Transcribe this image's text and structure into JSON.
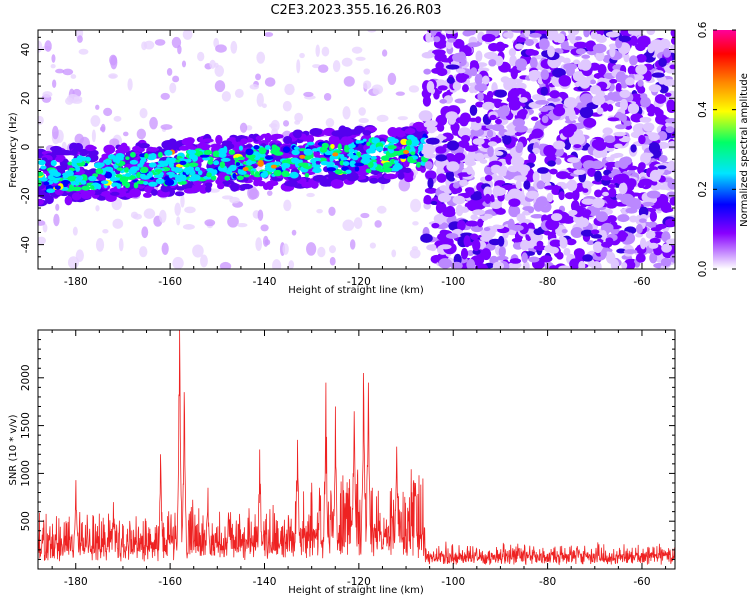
{
  "title": "C2E3.2023.355.16.26.R03",
  "chart_data": [
    {
      "type": "heatmap",
      "xlabel": "Height of straight line (km)",
      "ylabel": "Frequency (Hz)",
      "xlim": [
        -188,
        -53
      ],
      "ylim": [
        -50,
        48
      ],
      "xticks": [
        -180,
        -160,
        -140,
        -120,
        -100,
        -80,
        -60
      ],
      "yticks": [
        -40,
        -20,
        0,
        20,
        40
      ],
      "colorbar": {
        "label": "Normalized spectral amplitude",
        "range": [
          0.0,
          0.6
        ],
        "ticks": [
          "0.0",
          "0.2",
          "0.4",
          "0.6"
        ],
        "colors": [
          "#ffffff",
          "#cc99ff",
          "#8800ff",
          "#0000ff",
          "#00e5ff",
          "#00ff66",
          "#ffff00",
          "#ff8800",
          "#ff0000",
          "#ff0099"
        ]
      },
      "features": [
        {
          "x_range": [
            -188,
            -106
          ],
          "frequency_center_start": -12,
          "frequency_center_end": -2,
          "amplitude": "0.1-0.5"
        },
        {
          "x_range": [
            -106,
            -53
          ],
          "frequency_range": [
            -50,
            48
          ],
          "amplitude": "0.05-0.15"
        }
      ]
    },
    {
      "type": "line",
      "xlabel": "Height of straight line (km)",
      "ylabel": "SNR (10 * v/v)",
      "xlim": [
        -188,
        -53
      ],
      "ylim": [
        0,
        2500
      ],
      "xticks": [
        -180,
        -160,
        -140,
        -120,
        -100,
        -80,
        -60
      ],
      "yticks": [
        500,
        1000,
        1500,
        2000
      ],
      "color": "#ee2222",
      "peaks": [
        {
          "x": -180,
          "y": 930
        },
        {
          "x": -172,
          "y": 700
        },
        {
          "x": -162,
          "y": 1200
        },
        {
          "x": -158,
          "y": 2500
        },
        {
          "x": -157,
          "y": 1850
        },
        {
          "x": -152,
          "y": 850
        },
        {
          "x": -141,
          "y": 1250
        },
        {
          "x": -133,
          "y": 1350
        },
        {
          "x": -127,
          "y": 1950
        },
        {
          "x": -125,
          "y": 1700
        },
        {
          "x": -121,
          "y": 1650
        },
        {
          "x": -119,
          "y": 2050
        },
        {
          "x": -118,
          "y": 1950
        },
        {
          "x": -112,
          "y": 1280
        },
        {
          "x": -108,
          "y": 900
        }
      ],
      "segments": [
        {
          "x_range": [
            -188,
            -160
          ],
          "baseline": 220,
          "spread": 380
        },
        {
          "x_range": [
            -160,
            -135
          ],
          "baseline": 250,
          "spread": 420
        },
        {
          "x_range": [
            -135,
            -106
          ],
          "baseline": 300,
          "spread": 700
        },
        {
          "x_range": [
            -106,
            -53
          ],
          "baseline": 130,
          "spread": 130
        }
      ]
    }
  ]
}
